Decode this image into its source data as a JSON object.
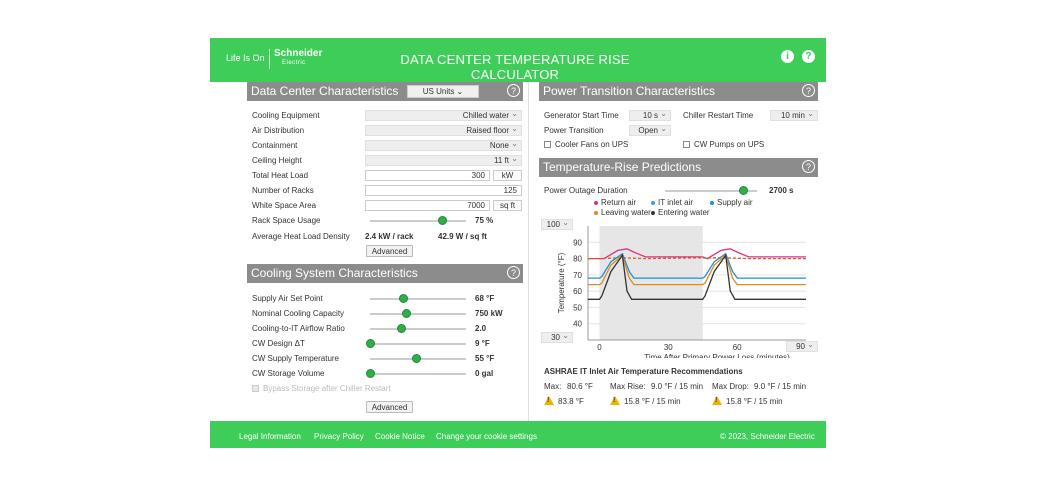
{
  "header": {
    "tagline": "Life Is On",
    "brand": "Schneider",
    "brand_sub": "Electric",
    "title": "DATA CENTER TEMPERATURE RISE CALCULATOR",
    "info_icon": "info-icon",
    "help_icon": "help-icon"
  },
  "colors": {
    "brand_green": "#3dcd58",
    "section_header": "#8c8c8c",
    "slider_knob": "#2fae49"
  },
  "dc": {
    "heading": "Data Center Characteristics",
    "units": "US Units",
    "rows": {
      "cooling_equipment": {
        "label": "Cooling Equipment",
        "value": "Chilled water"
      },
      "air_distribution": {
        "label": "Air Distribution",
        "value": "Raised floor"
      },
      "containment": {
        "label": "Containment",
        "value": "None"
      },
      "ceiling_height": {
        "label": "Ceiling Height",
        "value": "11 ft"
      },
      "total_heat_load": {
        "label": "Total Heat Load",
        "value": "300",
        "unit": "kW"
      },
      "number_of_racks": {
        "label": "Number of Racks",
        "value": "125"
      },
      "white_space_area": {
        "label": "White Space Area",
        "value": "7000",
        "unit": "sq ft"
      },
      "rack_space_usage": {
        "label": "Rack Space Usage",
        "value": "75 %",
        "level": 0.75
      },
      "avg_heat_load_density": {
        "label": "Average Heat Load Density",
        "value1": "2.4 kW / rack",
        "value2": "42.9 W / sq ft"
      }
    },
    "advanced": "Advanced"
  },
  "cooling": {
    "heading": "Cooling System Characteristics",
    "rows": {
      "supply_air_set_point": {
        "label": "Supply Air Set Point",
        "value": "68 °F",
        "level": 0.35
      },
      "nominal_cooling_capacity": {
        "label": "Nominal Cooling Capacity",
        "value": "750 kW",
        "level": 0.38
      },
      "cooling_to_it_airflow": {
        "label": "Cooling-to-IT Airflow Ratio",
        "value": "2.0",
        "level": 0.33
      },
      "cw_design_dt": {
        "label": "CW Design ΔT",
        "value": "9 °F",
        "level": 0.0
      },
      "cw_supply_temperature": {
        "label": "CW Supply Temperature",
        "value": "55 °F",
        "level": 0.48
      },
      "cw_storage_volume": {
        "label": "CW Storage Volume",
        "value": "0 gal",
        "level": 0.0
      }
    },
    "bypass": "Bypass Storage after Chiller Restart",
    "advanced": "Advanced"
  },
  "power": {
    "heading": "Power Transition Characteristics",
    "generator_start_time": {
      "label": "Generator Start Time",
      "value": "10 s"
    },
    "chiller_restart_time": {
      "label": "Chiller Restart Time",
      "value": "10 min"
    },
    "power_transition": {
      "label": "Power Transition",
      "value": "Open"
    },
    "cooler_fans_on_ups": "Cooler Fans on UPS",
    "cw_pumps_on_ups": "CW Pumps on UPS"
  },
  "predictions": {
    "heading": "Temperature-Rise Predictions",
    "outage_label": "Power Outage Duration",
    "outage_value": "2700 s",
    "outage_level": 0.85,
    "ymax_select": "100",
    "ymin_select": "30",
    "xmax_select": "90",
    "legend": {
      "return_air": "Return air",
      "it_inlet_air": "IT inlet air",
      "supply_air": "Supply air",
      "leaving_water": "Leaving water",
      "entering_water": "Entering water"
    },
    "ashrae": {
      "title": "ASHRAE IT Inlet Air Temperature Recommendations",
      "max_label": "Max:",
      "max_value": "80.6 °F",
      "rise_label": "Max Rise:",
      "rise_value": "9.0 °F / 15 min",
      "drop_label": "Max Drop:",
      "drop_value": "9.0 °F / 15 min",
      "max_actual": "83.8 °F",
      "rise_actual": "15.8 °F / 15 min",
      "drop_actual": "15.8 °F / 15 min"
    }
  },
  "chart_data": {
    "type": "line",
    "xlabel": "Time After Primary Power Loss (minutes)",
    "ylabel": "Temperature (°F)",
    "xlim": [
      -5,
      90
    ],
    "ylim": [
      30,
      100
    ],
    "xticks": [
      0,
      30,
      60
    ],
    "yticks": [
      40,
      50,
      60,
      70,
      80,
      90
    ],
    "shaded_region": [
      0,
      45
    ],
    "series": [
      {
        "name": "Return air",
        "color": "#d63384",
        "style": "solid",
        "x": [
          -5,
          0,
          2,
          8,
          12,
          15,
          20,
          45,
          47,
          53,
          57,
          60,
          65,
          90
        ],
        "y": [
          80,
          80,
          80,
          85,
          86,
          84,
          81,
          81,
          80,
          85,
          86,
          84,
          81,
          81
        ]
      },
      {
        "name": "IT inlet air",
        "color": "#e05a2b",
        "style": "dashed",
        "x": [
          -5,
          0,
          10,
          20,
          45,
          55,
          65,
          90
        ],
        "y": [
          80,
          80,
          80.5,
          80,
          80.5,
          80.5,
          80,
          80
        ]
      },
      {
        "name": "Supply air",
        "color": "#1e90d6",
        "style": "solid",
        "x": [
          -5,
          0,
          1,
          5,
          10,
          13,
          15,
          45,
          46,
          50,
          55,
          58,
          60,
          90
        ],
        "y": [
          68,
          68,
          69,
          78,
          83,
          72,
          68,
          68,
          69,
          78,
          83,
          72,
          68,
          68
        ]
      },
      {
        "name": "Leaving water",
        "color": "#e08a1e",
        "style": "solid",
        "x": [
          -5,
          0,
          1,
          5,
          10,
          13,
          15,
          45,
          46,
          50,
          55,
          58,
          60,
          90
        ],
        "y": [
          64,
          64,
          65,
          76,
          82,
          68,
          64,
          64,
          65,
          76,
          82,
          68,
          64,
          64
        ]
      },
      {
        "name": "Entering water",
        "color": "#333333",
        "style": "solid",
        "x": [
          -5,
          0,
          1,
          5,
          10,
          12,
          14,
          45,
          46,
          50,
          55,
          57,
          59,
          90
        ],
        "y": [
          55,
          55,
          57,
          72,
          82,
          60,
          55,
          55,
          57,
          72,
          82,
          60,
          55,
          55
        ]
      }
    ]
  },
  "footer": {
    "legal": "Legal Information",
    "privacy": "Privacy Policy",
    "cookie": "Cookie Notice",
    "settings": "Change your cookie settings",
    "copyright": "© 2023, Schneider Electric"
  }
}
